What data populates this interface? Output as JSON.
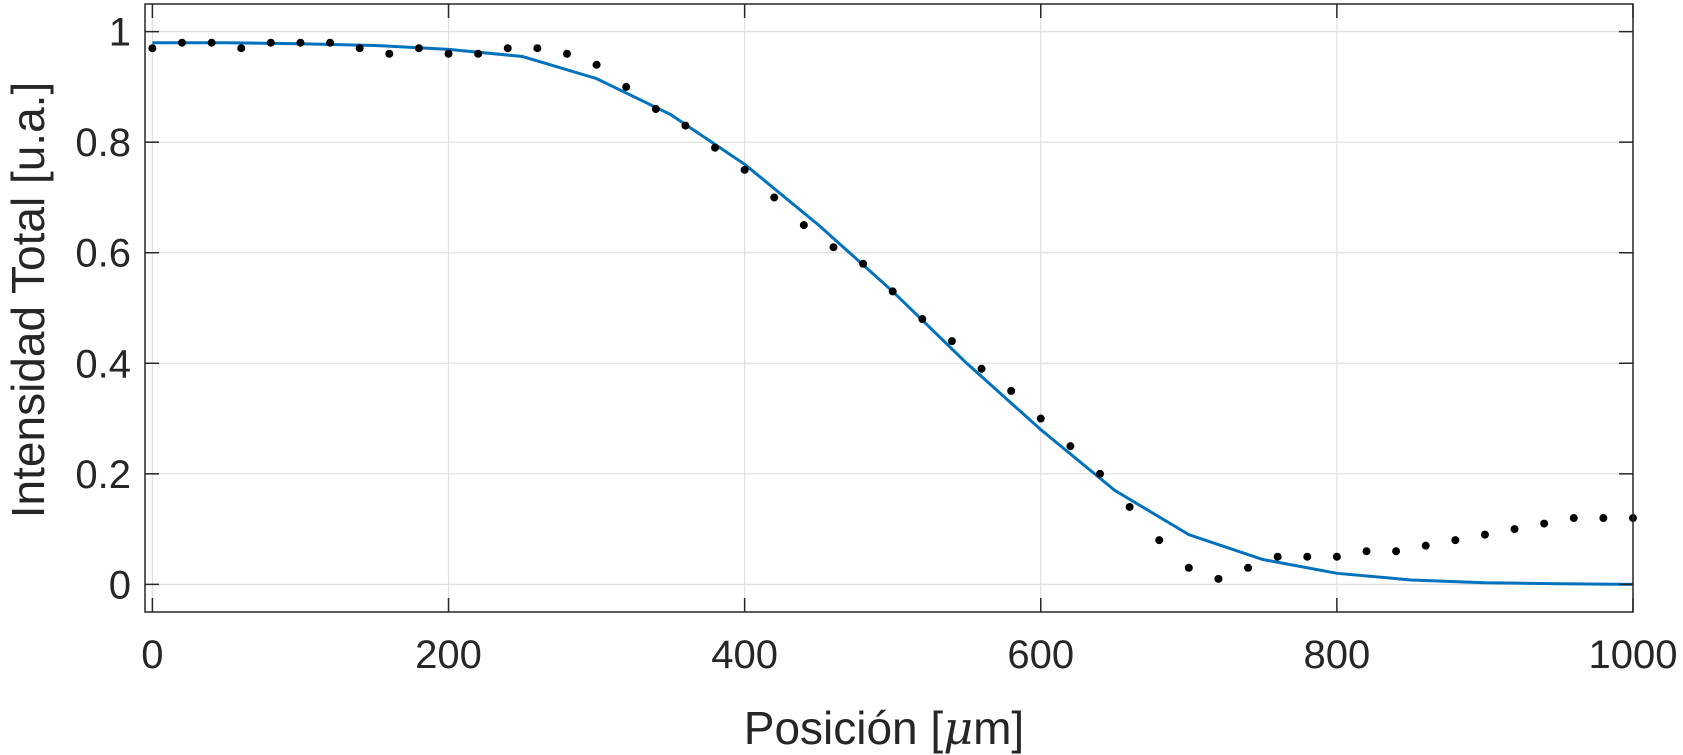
{
  "chart_data": {
    "type": "scatter",
    "xlabel_main": "Posición [",
    "xlabel_mu": "μ",
    "xlabel_end": "m]",
    "ylabel": "Intensidad Total [u.a.]",
    "xlim": [
      -5,
      1000
    ],
    "ylim": [
      -0.05,
      1.05
    ],
    "x_ticks": [
      0,
      200,
      400,
      600,
      800,
      1000
    ],
    "y_ticks": [
      0,
      0.2,
      0.4,
      0.6,
      0.8,
      1
    ],
    "x_tick_labels": [
      "0",
      "200",
      "400",
      "600",
      "800",
      "1000"
    ],
    "y_tick_labels": [
      "0",
      "0.2",
      "0.4",
      "0.6",
      "0.8",
      "1"
    ],
    "grid": true,
    "colors": {
      "points": "#000000",
      "fit": "#0072BD",
      "axes": "#262626",
      "grid": "#dfdfdf"
    },
    "series": [
      {
        "type": "scatter",
        "x": [
          0,
          20,
          40,
          60,
          80,
          100,
          120,
          140,
          160,
          180,
          200,
          220,
          240,
          260,
          280,
          300,
          320,
          340,
          360,
          380,
          400,
          420,
          440,
          460,
          480,
          500,
          520,
          540,
          560,
          580,
          600,
          620,
          640,
          660,
          680,
          700,
          720,
          740,
          760,
          780,
          800,
          820,
          840,
          860,
          880,
          900,
          920,
          940,
          960,
          980,
          1000
        ],
        "y": [
          0.97,
          0.98,
          0.98,
          0.97,
          0.98,
          0.98,
          0.98,
          0.97,
          0.96,
          0.97,
          0.96,
          0.96,
          0.97,
          0.97,
          0.96,
          0.94,
          0.9,
          0.86,
          0.83,
          0.79,
          0.75,
          0.7,
          0.65,
          0.61,
          0.58,
          0.53,
          0.48,
          0.44,
          0.39,
          0.35,
          0.3,
          0.25,
          0.2,
          0.14,
          0.08,
          0.03,
          0.01,
          0.03,
          0.05,
          0.05,
          0.05,
          0.06,
          0.06,
          0.07,
          0.08,
          0.09,
          0.1,
          0.11,
          0.12,
          0.12,
          0.12
        ]
      },
      {
        "type": "line",
        "x": [
          0,
          50,
          100,
          150,
          200,
          250,
          300,
          350,
          400,
          450,
          500,
          550,
          600,
          650,
          700,
          750,
          800,
          850,
          900,
          950,
          1000
        ],
        "y": [
          0.98,
          0.98,
          0.978,
          0.975,
          0.968,
          0.955,
          0.915,
          0.85,
          0.76,
          0.65,
          0.53,
          0.4,
          0.28,
          0.17,
          0.09,
          0.045,
          0.02,
          0.008,
          0.003,
          0.001,
          0
        ]
      }
    ]
  }
}
